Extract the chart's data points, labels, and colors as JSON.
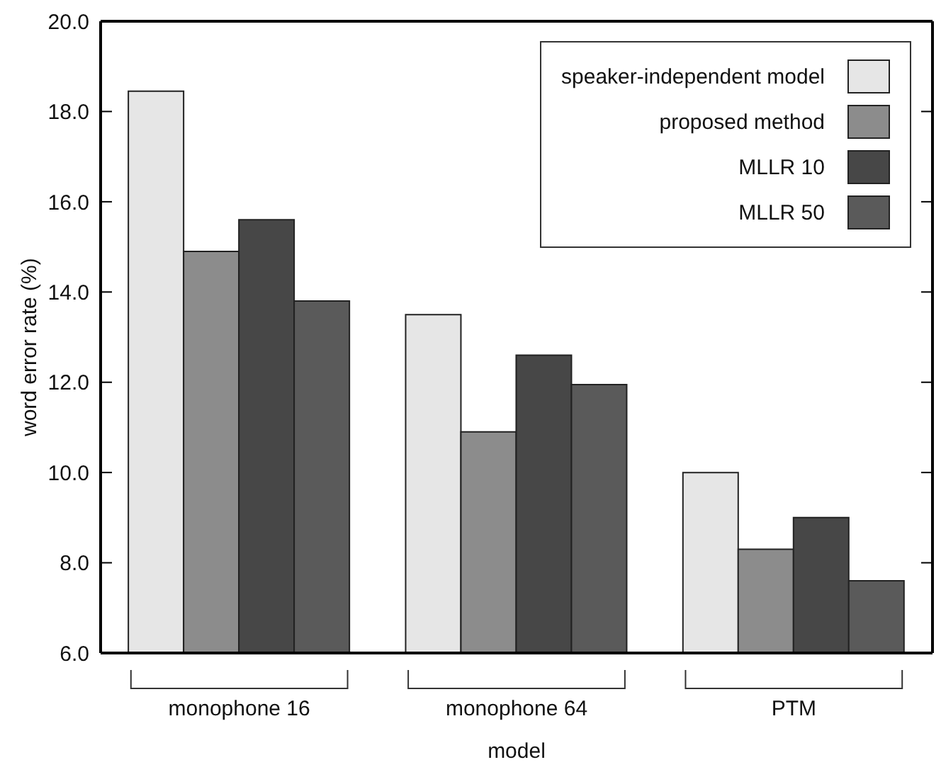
{
  "chart_data": {
    "type": "bar",
    "xlabel": "model",
    "ylabel": "word error rate (%)",
    "categories": [
      "monophone 16",
      "monophone 64",
      "PTM"
    ],
    "series": [
      {
        "name": "speaker-independent model",
        "color": "#e6e6e6",
        "values": [
          18.45,
          13.5,
          10.0
        ]
      },
      {
        "name": "proposed method",
        "color": "#8c8c8c",
        "values": [
          14.9,
          10.9,
          8.3
        ]
      },
      {
        "name": "MLLR 10",
        "color": "#474747",
        "values": [
          15.6,
          12.6,
          9.0
        ]
      },
      {
        "name": "MLLR 50",
        "color": "#5a5a5a",
        "values": [
          13.8,
          11.95,
          7.6
        ]
      }
    ],
    "ylim": [
      6,
      20
    ],
    "yticks": [
      {
        "value": 6,
        "label": "6.0"
      },
      {
        "value": 8,
        "label": "8.0"
      },
      {
        "value": 10,
        "label": "10.0"
      },
      {
        "value": 12,
        "label": "12.0"
      },
      {
        "value": 14,
        "label": "14.0"
      },
      {
        "value": 16,
        "label": "16.0"
      },
      {
        "value": 18,
        "label": "18.0"
      },
      {
        "value": 20,
        "label": "20.0"
      }
    ],
    "legend": "top right",
    "grid": false
  }
}
